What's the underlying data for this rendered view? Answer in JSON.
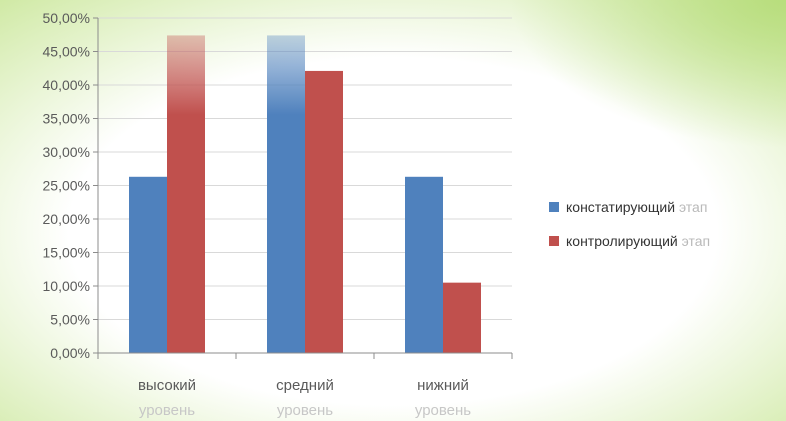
{
  "chart_data": {
    "type": "bar",
    "categories": [
      "высокий уровень",
      "средний уровень",
      "нижний уровень"
    ],
    "category_lines": [
      [
        "высокий",
        "уровень"
      ],
      [
        "средний",
        "уровень"
      ],
      [
        "нижний",
        "уровень"
      ]
    ],
    "series": [
      {
        "name": "констатирующий этап",
        "values": [
          26.3,
          47.4,
          26.3
        ],
        "color": "#4f81bd"
      },
      {
        "name": "контролирующий этап",
        "values": [
          47.4,
          42.1,
          10.5
        ],
        "color": "#c0504d"
      }
    ],
    "ylim": [
      0,
      50
    ],
    "ytick_step": 5,
    "ytick_labels": [
      "0,00%",
      "5,00%",
      "10,00%",
      "15,00%",
      "20,00%",
      "25,00%",
      "30,00%",
      "35,00%",
      "40,00%",
      "45,00%",
      "50,00%"
    ],
    "grid": true,
    "legend_position": "right"
  },
  "colors": {
    "background_tint": "#cfe9a3",
    "gridline": "#d9d9d9",
    "axis": "#8c8c8c",
    "tick_text": "#5a5a5a"
  }
}
